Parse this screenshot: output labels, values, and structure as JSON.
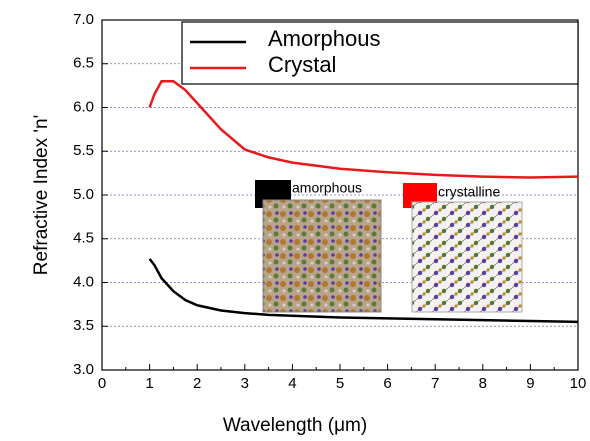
{
  "chart_data": {
    "type": "line",
    "x_label": "Wavelength (μm)",
    "y_label": "Refractive Index  'n'",
    "x": [
      1,
      1.1,
      1.25,
      1.5,
      1.75,
      2,
      2.5,
      3,
      3.5,
      4,
      5,
      6,
      7,
      8,
      9,
      10
    ],
    "series": [
      {
        "name": "Amorphous",
        "color": "#000000",
        "values": [
          4.27,
          4.2,
          4.05,
          3.9,
          3.8,
          3.74,
          3.68,
          3.65,
          3.63,
          3.62,
          3.6,
          3.59,
          3.58,
          3.57,
          3.56,
          3.55
        ]
      },
      {
        "name": "Crystal",
        "color": "#e8191c",
        "values": [
          6.0,
          6.15,
          6.3,
          6.3,
          6.2,
          6.05,
          5.75,
          5.52,
          5.43,
          5.37,
          5.3,
          5.26,
          5.23,
          5.21,
          5.2,
          5.21
        ]
      }
    ],
    "xlim": [
      0,
      10
    ],
    "xticks": [
      0,
      1,
      2,
      3,
      4,
      5,
      6,
      7,
      8,
      9,
      10
    ],
    "ylim": [
      3.0,
      7.0
    ],
    "yticks": [
      {
        "value": 3.0,
        "label": "3.0"
      },
      3.5,
      {
        "value": 4.0,
        "label": "4.0"
      },
      4.5,
      {
        "value": 5.0,
        "label": "5.0"
      },
      5.5,
      {
        "value": 6.0,
        "label": "6.0"
      },
      6.5,
      {
        "value": 7.0,
        "label": "7.0"
      }
    ],
    "grid": true,
    "legend": "upper right",
    "insets": [
      "amorphous",
      "crystalline"
    ]
  }
}
